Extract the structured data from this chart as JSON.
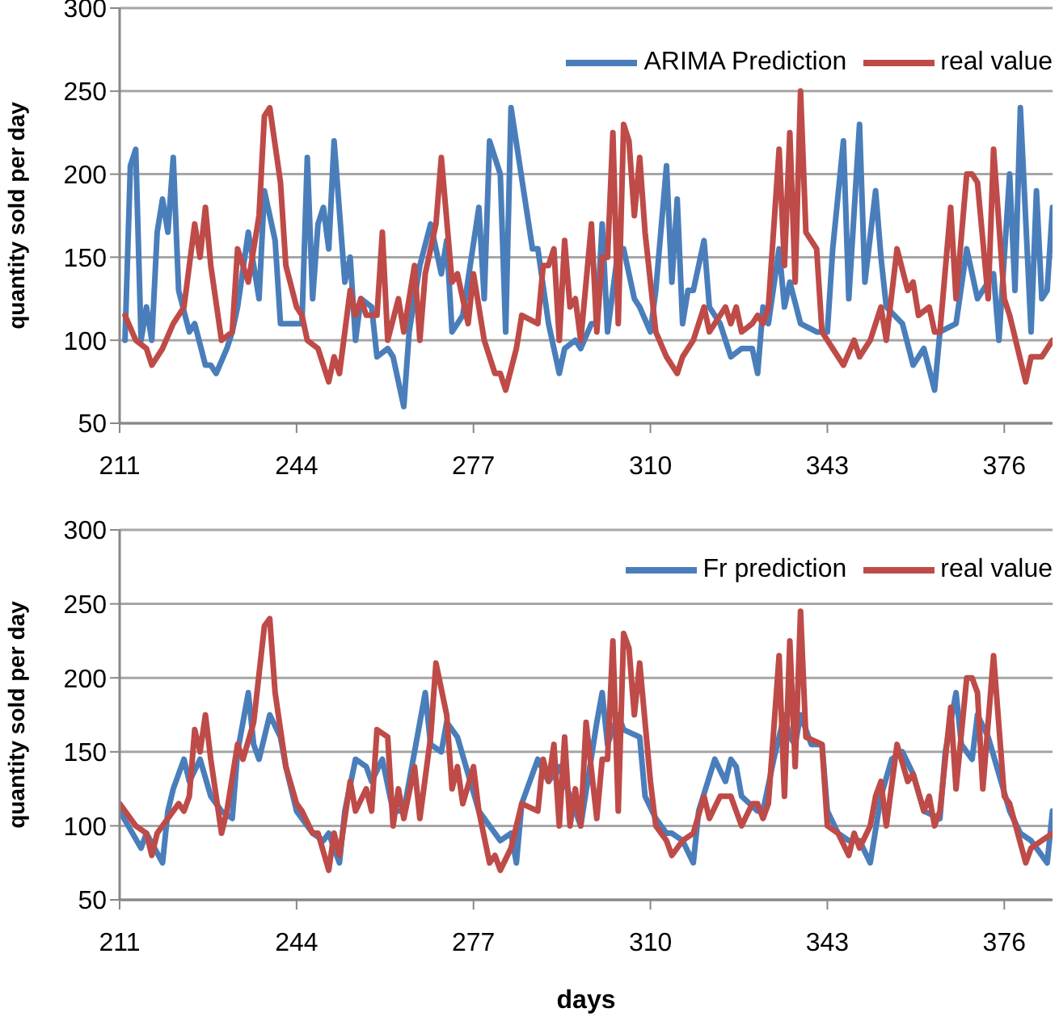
{
  "chart_data": [
    {
      "type": "line",
      "ylabel": "quantity sold per day",
      "xlim": [
        211,
        385
      ],
      "xticks": [
        211,
        244,
        277,
        310,
        343,
        376
      ],
      "ylim": [
        50,
        300
      ],
      "yticks": [
        50,
        100,
        150,
        200,
        250,
        300
      ],
      "grid": "y",
      "legend": "top right",
      "marker": "none",
      "line_style": "solid",
      "series": [
        {
          "name": "ARIMA Prediction",
          "color": "#4a7ebb",
          "x": [
            212,
            213,
            214,
            215,
            216,
            217,
            218,
            219,
            220,
            221,
            222,
            224,
            225,
            227,
            228,
            229,
            231,
            232,
            233,
            235,
            237,
            238,
            240,
            241,
            243,
            245,
            246,
            247,
            248,
            249,
            250,
            251,
            253,
            254,
            255,
            256,
            258,
            259,
            261,
            262,
            264,
            265,
            267,
            269,
            271,
            272,
            273,
            275,
            278,
            279,
            280,
            282,
            283,
            284,
            288,
            289,
            291,
            293,
            294,
            296,
            297,
            299,
            300,
            301,
            302,
            304,
            305,
            307,
            308,
            310,
            311,
            313,
            314,
            315,
            316,
            317,
            318,
            320,
            321,
            323,
            325,
            327,
            329,
            330,
            331,
            332,
            334,
            335,
            336,
            338,
            341,
            343,
            344,
            346,
            347,
            349,
            350,
            352,
            353,
            354,
            357,
            359,
            361,
            363,
            364,
            367,
            369,
            371,
            374,
            375,
            377,
            378,
            379,
            381,
            382,
            383,
            384,
            385
          ],
          "values": [
            100,
            205,
            215,
            100,
            120,
            100,
            165,
            185,
            165,
            210,
            130,
            105,
            110,
            85,
            85,
            80,
            95,
            105,
            120,
            165,
            125,
            190,
            160,
            110,
            110,
            110,
            210,
            125,
            170,
            180,
            155,
            220,
            135,
            150,
            100,
            125,
            120,
            90,
            95,
            90,
            60,
            105,
            145,
            170,
            140,
            160,
            105,
            115,
            180,
            125,
            220,
            200,
            105,
            240,
            155,
            155,
            110,
            80,
            95,
            100,
            95,
            110,
            110,
            170,
            105,
            155,
            155,
            125,
            120,
            105,
            130,
            205,
            135,
            185,
            110,
            130,
            130,
            160,
            120,
            110,
            90,
            95,
            95,
            80,
            120,
            110,
            155,
            120,
            135,
            110,
            105,
            105,
            155,
            220,
            125,
            230,
            135,
            190,
            150,
            120,
            110,
            85,
            95,
            70,
            105,
            110,
            155,
            125,
            140,
            100,
            200,
            130,
            240,
            105,
            190,
            125,
            130,
            180
          ]
        },
        {
          "name": "real value",
          "color": "#be4b48",
          "x": [
            212,
            214,
            216,
            217,
            219,
            221,
            222,
            223,
            225,
            226,
            227,
            228,
            230,
            232,
            233,
            235,
            237,
            238,
            239,
            241,
            242,
            244,
            245,
            246,
            248,
            250,
            251,
            252,
            254,
            255,
            256,
            257,
            259,
            260,
            261,
            263,
            264,
            266,
            267,
            268,
            270,
            271,
            273,
            274,
            276,
            277,
            279,
            281,
            282,
            283,
            285,
            286,
            289,
            290,
            291,
            292,
            293,
            294,
            295,
            296,
            297,
            299,
            300,
            301,
            302,
            303,
            304,
            305,
            306,
            307,
            308,
            309,
            311,
            313,
            315,
            316,
            318,
            320,
            321,
            323,
            324,
            325,
            326,
            327,
            329,
            330,
            331,
            332,
            334,
            335,
            336,
            337,
            338,
            339,
            341,
            342,
            344,
            346,
            348,
            349,
            351,
            353,
            354,
            356,
            358,
            359,
            360,
            362,
            363,
            364,
            366,
            367,
            369,
            370,
            371,
            373,
            374,
            376,
            377,
            380,
            381,
            383,
            385
          ],
          "values": [
            115,
            100,
            95,
            85,
            95,
            110,
            115,
            120,
            170,
            150,
            180,
            145,
            100,
            105,
            155,
            135,
            175,
            235,
            240,
            195,
            145,
            120,
            115,
            100,
            95,
            75,
            90,
            80,
            130,
            115,
            125,
            115,
            115,
            165,
            100,
            125,
            105,
            145,
            100,
            140,
            170,
            210,
            135,
            140,
            110,
            140,
            100,
            80,
            80,
            70,
            95,
            115,
            110,
            145,
            145,
            155,
            100,
            160,
            120,
            125,
            100,
            170,
            105,
            150,
            150,
            225,
            110,
            230,
            220,
            175,
            210,
            165,
            105,
            90,
            80,
            90,
            100,
            120,
            105,
            115,
            120,
            110,
            120,
            105,
            110,
            115,
            110,
            120,
            215,
            145,
            225,
            135,
            250,
            165,
            155,
            105,
            95,
            85,
            100,
            90,
            100,
            120,
            100,
            155,
            130,
            135,
            115,
            120,
            105,
            105,
            180,
            125,
            200,
            200,
            195,
            125,
            215,
            125,
            115,
            75,
            90,
            90,
            100
          ]
        }
      ]
    },
    {
      "type": "line",
      "xlabel": "days",
      "ylabel": "quantity sold per day",
      "xlim": [
        211,
        385
      ],
      "xticks": [
        211,
        244,
        277,
        310,
        343,
        376
      ],
      "ylim": [
        50,
        300
      ],
      "yticks": [
        50,
        100,
        150,
        200,
        250,
        300
      ],
      "grid": "y",
      "legend": "top right",
      "marker": "none",
      "line_style": "solid",
      "series": [
        {
          "name": "Fr prediction",
          "color": "#4a7ebb",
          "x": [
            211,
            215,
            216,
            219,
            220,
            221,
            223,
            224,
            226,
            228,
            230,
            232,
            233,
            235,
            236,
            237,
            239,
            241,
            242,
            244,
            247,
            249,
            250,
            252,
            253,
            255,
            257,
            258,
            260,
            262,
            264,
            266,
            268,
            269,
            271,
            272,
            274,
            276,
            278,
            281,
            282,
            284,
            285,
            286,
            289,
            291,
            293,
            295,
            296,
            297,
            300,
            301,
            302,
            304,
            305,
            308,
            309,
            311,
            313,
            314,
            316,
            318,
            319,
            322,
            324,
            325,
            326,
            327,
            330,
            331,
            333,
            335,
            336,
            337,
            338,
            340,
            342,
            343,
            345,
            347,
            349,
            351,
            353,
            355,
            357,
            359,
            361,
            364,
            365,
            367,
            368,
            370,
            371,
            373,
            375,
            377,
            379,
            381,
            382,
            384,
            385
          ],
          "values": [
            110,
            85,
            95,
            75,
            110,
            125,
            145,
            130,
            145,
            120,
            110,
            105,
            150,
            190,
            155,
            145,
            175,
            160,
            140,
            110,
            95,
            90,
            95,
            75,
            110,
            145,
            140,
            130,
            145,
            110,
            110,
            150,
            190,
            155,
            150,
            170,
            160,
            135,
            110,
            95,
            90,
            95,
            75,
            115,
            145,
            130,
            140,
            120,
            110,
            100,
            170,
            190,
            155,
            175,
            165,
            160,
            120,
            105,
            95,
            95,
            90,
            75,
            110,
            145,
            130,
            145,
            140,
            120,
            110,
            110,
            145,
            175,
            160,
            155,
            175,
            155,
            155,
            110,
            95,
            90,
            90,
            75,
            120,
            145,
            150,
            135,
            110,
            105,
            150,
            190,
            155,
            145,
            175,
            160,
            135,
            110,
            95,
            90,
            85,
            75,
            110
          ]
        },
        {
          "name": "real value",
          "color": "#be4b48",
          "x": [
            211,
            214,
            216,
            217,
            218,
            221,
            222,
            223,
            224,
            225,
            226,
            227,
            228,
            230,
            231,
            233,
            234,
            236,
            238,
            239,
            240,
            242,
            244,
            245,
            247,
            248,
            250,
            251,
            252,
            254,
            255,
            257,
            258,
            259,
            261,
            262,
            263,
            264,
            266,
            267,
            269,
            270,
            272,
            273,
            274,
            275,
            277,
            278,
            280,
            281,
            282,
            284,
            286,
            289,
            290,
            291,
            292,
            293,
            294,
            295,
            296,
            297,
            298,
            300,
            301,
            302,
            303,
            304,
            305,
            306,
            307,
            308,
            310,
            311,
            313,
            314,
            316,
            318,
            320,
            321,
            323,
            325,
            326,
            327,
            329,
            330,
            331,
            332,
            334,
            335,
            336,
            337,
            338,
            339,
            342,
            343,
            345,
            347,
            348,
            349,
            351,
            352,
            353,
            354,
            356,
            358,
            359,
            361,
            362,
            363,
            364,
            366,
            367,
            369,
            370,
            371,
            372,
            374,
            376,
            377,
            380,
            381,
            383,
            385
          ],
          "values": [
            115,
            100,
            95,
            80,
            95,
            110,
            115,
            110,
            120,
            165,
            150,
            175,
            145,
            95,
            110,
            155,
            145,
            170,
            235,
            240,
            190,
            140,
            115,
            110,
            95,
            95,
            70,
            95,
            80,
            130,
            110,
            125,
            110,
            165,
            160,
            100,
            125,
            105,
            140,
            105,
            160,
            210,
            175,
            125,
            140,
            115,
            140,
            110,
            75,
            80,
            70,
            85,
            115,
            110,
            145,
            130,
            155,
            100,
            160,
            100,
            125,
            100,
            170,
            105,
            145,
            145,
            225,
            110,
            230,
            220,
            175,
            210,
            130,
            100,
            90,
            80,
            90,
            95,
            120,
            105,
            120,
            120,
            110,
            100,
            115,
            115,
            105,
            115,
            215,
            120,
            225,
            140,
            245,
            160,
            155,
            100,
            95,
            80,
            95,
            85,
            100,
            120,
            130,
            100,
            155,
            130,
            135,
            110,
            120,
            100,
            110,
            180,
            125,
            200,
            200,
            190,
            125,
            215,
            120,
            115,
            75,
            85,
            90,
            95
          ]
        }
      ]
    }
  ]
}
